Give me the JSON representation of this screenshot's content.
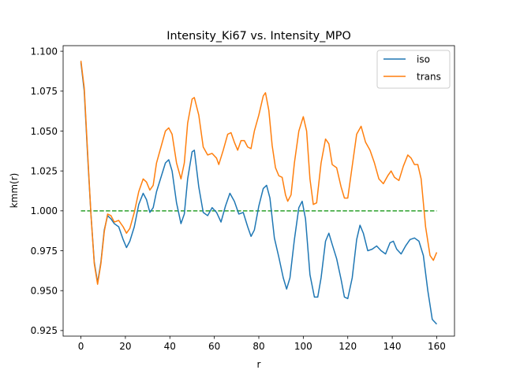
{
  "chart_data": {
    "type": "line",
    "title": "Intensity_Ki67 vs. Intensity_MPO",
    "xlabel": "r",
    "ylabel": "kmm(r)",
    "xlim": [
      -8,
      168
    ],
    "ylim": [
      0.9215,
      1.1035
    ],
    "xticks": [
      0,
      20,
      40,
      60,
      80,
      100,
      120,
      140,
      160
    ],
    "xtick_labels": [
      "0",
      "20",
      "40",
      "60",
      "80",
      "100",
      "120",
      "140",
      "160"
    ],
    "yticks": [
      0.925,
      0.95,
      0.975,
      1.0,
      1.025,
      1.05,
      1.075,
      1.1
    ],
    "ytick_labels": [
      "0.925",
      "0.950",
      "0.975",
      "1.000",
      "1.025",
      "1.050",
      "1.075",
      "1.100"
    ],
    "legend_position": "top-right",
    "reference_line": {
      "y": 1.0,
      "x_range": [
        0,
        160
      ],
      "style": "dashed",
      "color": "#2ca02c"
    },
    "series": [
      {
        "name": "iso",
        "color": "#1f77b4",
        "points": [
          [
            0,
            1.093
          ],
          [
            1.5,
            1.075
          ],
          [
            3,
            1.035
          ],
          [
            4.5,
            0.998
          ],
          [
            6,
            0.968
          ],
          [
            7.5,
            0.955
          ],
          [
            9,
            0.968
          ],
          [
            10.5,
            0.988
          ],
          [
            12,
            0.997
          ],
          [
            13.5,
            0.995
          ],
          [
            15,
            0.992
          ],
          [
            17,
            0.99
          ],
          [
            19,
            0.982
          ],
          [
            20.5,
            0.977
          ],
          [
            22,
            0.981
          ],
          [
            24,
            0.99
          ],
          [
            26,
            1.004
          ],
          [
            28,
            1.011
          ],
          [
            29.5,
            1.007
          ],
          [
            31,
            0.999
          ],
          [
            32.5,
            1.002
          ],
          [
            34,
            1.012
          ],
          [
            36,
            1.021
          ],
          [
            38,
            1.03
          ],
          [
            39.5,
            1.032
          ],
          [
            41,
            1.025
          ],
          [
            43,
            1.005
          ],
          [
            45,
            0.992
          ],
          [
            46.5,
            0.998
          ],
          [
            48,
            1.02
          ],
          [
            50,
            1.037
          ],
          [
            51,
            1.038
          ],
          [
            53,
            1.015
          ],
          [
            55,
            0.999
          ],
          [
            57,
            0.997
          ],
          [
            59,
            1.002
          ],
          [
            61,
            0.999
          ],
          [
            63,
            0.993
          ],
          [
            65,
            1.003
          ],
          [
            67,
            1.011
          ],
          [
            69,
            1.006
          ],
          [
            71,
            0.998
          ],
          [
            73,
            0.999
          ],
          [
            75,
            0.99
          ],
          [
            76.5,
            0.984
          ],
          [
            78,
            0.988
          ],
          [
            80,
            1.003
          ],
          [
            82,
            1.014
          ],
          [
            83.5,
            1.016
          ],
          [
            85,
            1.008
          ],
          [
            87,
            0.983
          ],
          [
            89,
            0.971
          ],
          [
            91,
            0.958
          ],
          [
            92.5,
            0.951
          ],
          [
            94,
            0.958
          ],
          [
            96,
            0.982
          ],
          [
            98,
            1.002
          ],
          [
            99.5,
            1.006
          ],
          [
            101,
            0.995
          ],
          [
            103,
            0.96
          ],
          [
            105,
            0.946
          ],
          [
            106.5,
            0.946
          ],
          [
            108,
            0.958
          ],
          [
            110,
            0.981
          ],
          [
            111.5,
            0.986
          ],
          [
            113,
            0.979
          ],
          [
            115,
            0.97
          ],
          [
            117,
            0.957
          ],
          [
            118.5,
            0.946
          ],
          [
            120,
            0.945
          ],
          [
            122,
            0.958
          ],
          [
            124,
            0.982
          ],
          [
            125.5,
            0.991
          ],
          [
            127,
            0.986
          ],
          [
            129,
            0.975
          ],
          [
            131,
            0.976
          ],
          [
            133,
            0.978
          ],
          [
            135,
            0.975
          ],
          [
            137,
            0.973
          ],
          [
            139,
            0.98
          ],
          [
            140.5,
            0.981
          ],
          [
            142,
            0.976
          ],
          [
            144,
            0.973
          ],
          [
            146,
            0.978
          ],
          [
            148,
            0.982
          ],
          [
            150,
            0.983
          ],
          [
            152,
            0.981
          ],
          [
            154,
            0.972
          ],
          [
            156,
            0.95
          ],
          [
            158,
            0.932
          ],
          [
            160,
            0.929
          ]
        ]
      },
      {
        "name": "trans",
        "color": "#ff7f0e",
        "points": [
          [
            0,
            1.094
          ],
          [
            1.5,
            1.077
          ],
          [
            3,
            1.037
          ],
          [
            4.5,
            0.998
          ],
          [
            6,
            0.967
          ],
          [
            7.5,
            0.954
          ],
          [
            9,
            0.967
          ],
          [
            10.5,
            0.987
          ],
          [
            12,
            0.998
          ],
          [
            13.5,
            0.997
          ],
          [
            15,
            0.993
          ],
          [
            17,
            0.994
          ],
          [
            19,
            0.99
          ],
          [
            20.5,
            0.986
          ],
          [
            22,
            0.989
          ],
          [
            24,
            0.999
          ],
          [
            26,
            1.012
          ],
          [
            28,
            1.02
          ],
          [
            29.5,
            1.018
          ],
          [
            31,
            1.013
          ],
          [
            32.5,
            1.016
          ],
          [
            34,
            1.03
          ],
          [
            36,
            1.04
          ],
          [
            38,
            1.05
          ],
          [
            39.5,
            1.052
          ],
          [
            41,
            1.048
          ],
          [
            43,
            1.03
          ],
          [
            45,
            1.02
          ],
          [
            46.5,
            1.03
          ],
          [
            48,
            1.055
          ],
          [
            50,
            1.07
          ],
          [
            51,
            1.071
          ],
          [
            53,
            1.06
          ],
          [
            55,
            1.04
          ],
          [
            57,
            1.035
          ],
          [
            59,
            1.036
          ],
          [
            61,
            1.033
          ],
          [
            62,
            1.029
          ],
          [
            64,
            1.038
          ],
          [
            66,
            1.048
          ],
          [
            67.5,
            1.049
          ],
          [
            69,
            1.043
          ],
          [
            70.5,
            1.038
          ],
          [
            72,
            1.044
          ],
          [
            73.5,
            1.044
          ],
          [
            75,
            1.04
          ],
          [
            76.5,
            1.039
          ],
          [
            78,
            1.05
          ],
          [
            80,
            1.06
          ],
          [
            82,
            1.072
          ],
          [
            83,
            1.074
          ],
          [
            84.5,
            1.063
          ],
          [
            86,
            1.041
          ],
          [
            87.5,
            1.027
          ],
          [
            89,
            1.022
          ],
          [
            90.5,
            1.021
          ],
          [
            92,
            1.01
          ],
          [
            93,
            1.006
          ],
          [
            94.5,
            1.01
          ],
          [
            96,
            1.03
          ],
          [
            98,
            1.05
          ],
          [
            100,
            1.059
          ],
          [
            101.5,
            1.05
          ],
          [
            103,
            1.02
          ],
          [
            104.5,
            1.004
          ],
          [
            106,
            1.005
          ],
          [
            108,
            1.03
          ],
          [
            110,
            1.045
          ],
          [
            111.5,
            1.042
          ],
          [
            113,
            1.029
          ],
          [
            115,
            1.027
          ],
          [
            117,
            1.015
          ],
          [
            118.5,
            1.008
          ],
          [
            120,
            1.008
          ],
          [
            122,
            1.028
          ],
          [
            124,
            1.048
          ],
          [
            126,
            1.053
          ],
          [
            128,
            1.043
          ],
          [
            130,
            1.038
          ],
          [
            132,
            1.03
          ],
          [
            134,
            1.02
          ],
          [
            136,
            1.017
          ],
          [
            138,
            1.022
          ],
          [
            139.5,
            1.025
          ],
          [
            141,
            1.021
          ],
          [
            143,
            1.019
          ],
          [
            145,
            1.028
          ],
          [
            147,
            1.035
          ],
          [
            148.5,
            1.033
          ],
          [
            150,
            1.029
          ],
          [
            151.5,
            1.029
          ],
          [
            153,
            1.02
          ],
          [
            155,
            0.99
          ],
          [
            157,
            0.972
          ],
          [
            158.5,
            0.969
          ],
          [
            160,
            0.974
          ]
        ]
      }
    ]
  }
}
